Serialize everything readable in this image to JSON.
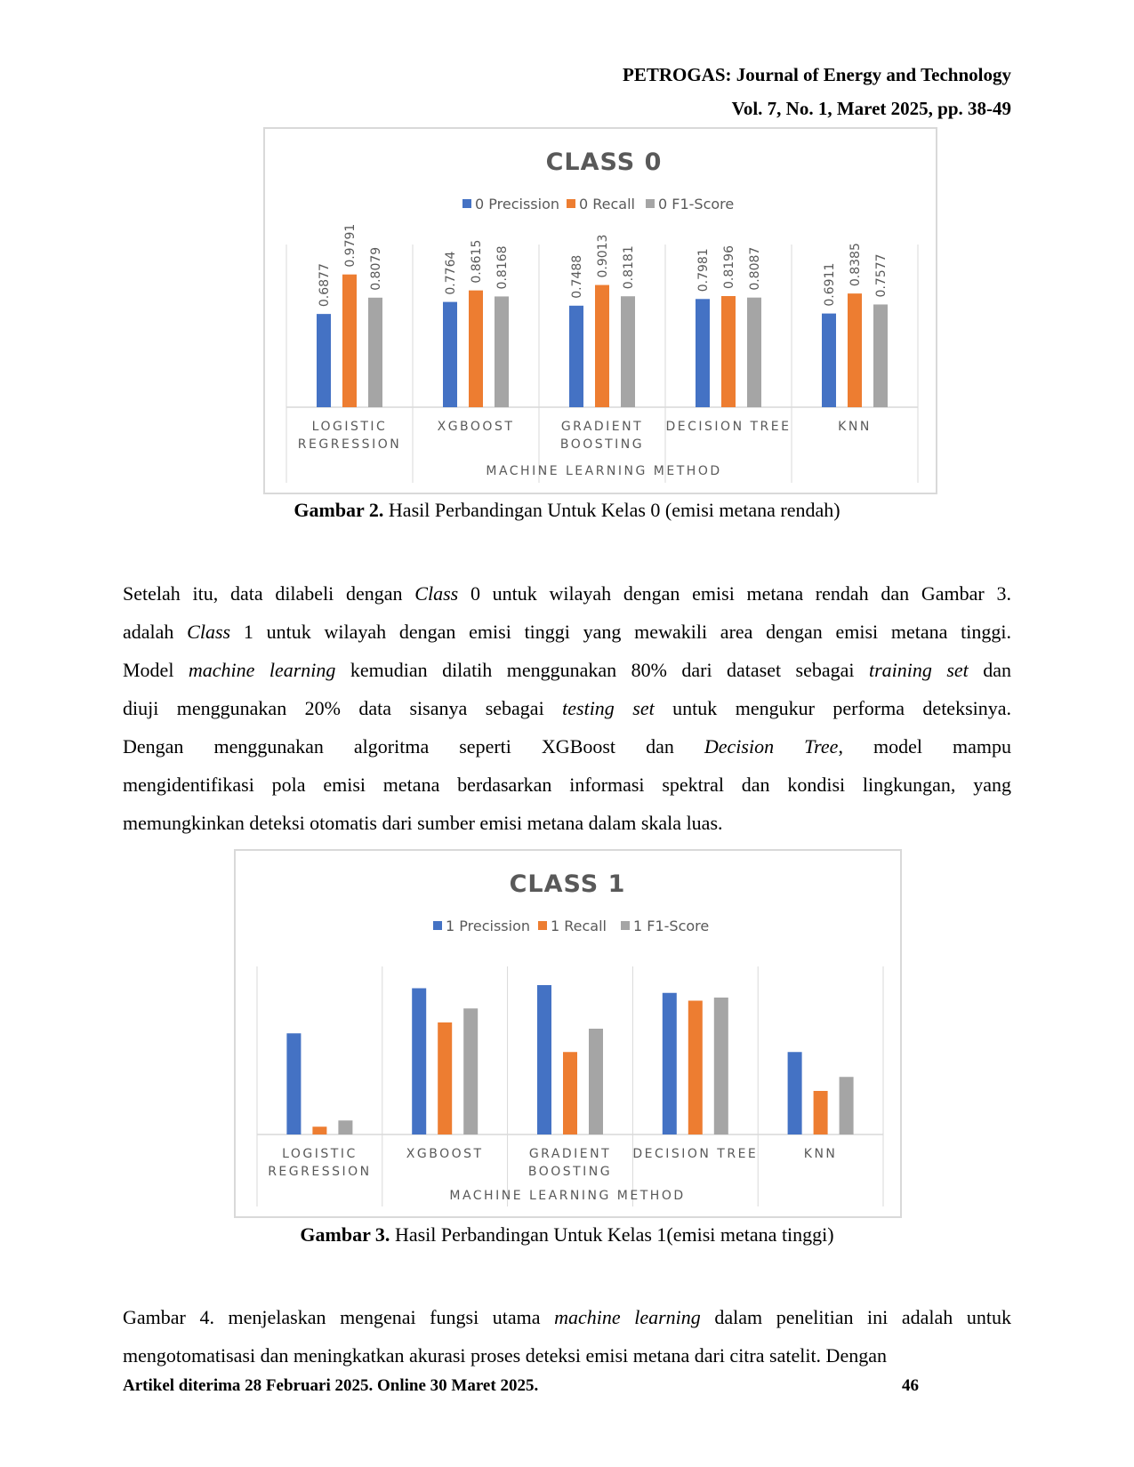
{
  "header": {
    "journal": "PETROGAS: Journal of Energy and Technology",
    "volume": "Vol. 7, No. 1, Maret 2025, pp. 38-49"
  },
  "figure2": {
    "caption_label": "Gambar 2.",
    "caption_text": " Hasil Perbandingan Untuk Kelas 0 (emisi metana rendah)"
  },
  "paragraph1": {
    "lines": [
      [
        {
          "t": "Setelah itu, data dilabeli dengan "
        },
        {
          "t": "Class",
          "i": true
        },
        {
          "t": " 0 untuk wilayah dengan emisi metana rendah dan Gambar 3."
        }
      ],
      [
        {
          "t": "adalah "
        },
        {
          "t": "Class",
          "i": true
        },
        {
          "t": " 1 untuk wilayah dengan emisi tinggi yang mewakili area dengan emisi metana tinggi."
        }
      ],
      [
        {
          "t": "Model "
        },
        {
          "t": "machine learning",
          "i": true
        },
        {
          "t": " kemudian dilatih menggunakan 80% dari dataset sebagai "
        },
        {
          "t": "training set",
          "i": true
        },
        {
          "t": " dan"
        }
      ],
      [
        {
          "t": "diuji menggunakan 20% data sisanya sebagai "
        },
        {
          "t": "testing set",
          "i": true
        },
        {
          "t": " untuk mengukur performa deteksinya."
        }
      ],
      [
        {
          "t": "Dengan menggunakan algoritma seperti XGBoost dan "
        },
        {
          "t": "Decision Tree",
          "i": true
        },
        {
          "t": ", model mampu"
        }
      ],
      [
        {
          "t": "mengidentifikasi pola emisi metana berdasarkan informasi spektral dan kondisi lingkungan, yang"
        }
      ],
      [
        {
          "t": "memungkinkan deteksi otomatis dari sumber emisi metana dalam skala luas."
        }
      ]
    ]
  },
  "figure3": {
    "caption_label": "Gambar 3.",
    "caption_text": " Hasil Perbandingan Untuk Kelas 1(emisi metana tinggi)"
  },
  "paragraph2": {
    "lines": [
      [
        {
          "t": "Gambar 4. menjelaskan mengenai fungsi utama "
        },
        {
          "t": "machine learning",
          "i": true
        },
        {
          "t": " dalam penelitian ini adalah untuk"
        }
      ],
      [
        {
          "t": "mengotomatisasi dan meningkatkan akurasi proses deteksi emisi metana dari citra satelit. Dengan"
        }
      ]
    ]
  },
  "footer": {
    "text": "Artikel diterima 28 Februari 2025. Online 30 Maret 2025.",
    "page_number": "46"
  },
  "colors": {
    "precision": "#4472C4",
    "recall": "#ED7D31",
    "f1": "#A5A5A5",
    "text": "#595959",
    "grid": "#D9D9D9"
  },
  "chart_data": [
    {
      "type": "bar",
      "title": "CLASS 0",
      "xlabel": "MACHINE LEARNING METHOD",
      "ylabel": "",
      "categories": [
        [
          "LOGISTIC",
          "REGRESSION"
        ],
        [
          "XGBOOST"
        ],
        [
          "GRADIENT",
          "BOOSTING"
        ],
        [
          "DECISION TREE"
        ],
        [
          "KNN"
        ]
      ],
      "series": [
        {
          "name": "0 Precission",
          "values": [
            0.6877,
            0.7764,
            0.7488,
            0.7981,
            0.6911
          ]
        },
        {
          "name": "0 Recall",
          "values": [
            0.9791,
            0.8615,
            0.9013,
            0.8196,
            0.8385
          ]
        },
        {
          "name": "0 F1-Score",
          "values": [
            0.8079,
            0.8168,
            0.8181,
            0.8087,
            0.7577
          ]
        }
      ],
      "data_labels": true,
      "ylim": [
        0,
        1.2
      ],
      "legend": "top"
    },
    {
      "type": "bar",
      "title": "CLASS 1",
      "xlabel": "MACHINE LEARNING METHOD",
      "ylabel": "",
      "categories": [
        [
          "LOGISTIC",
          "REGRESSION"
        ],
        [
          "XGBOOST"
        ],
        [
          "GRADIENT",
          "BOOSTING"
        ],
        [
          "DECISION TREE"
        ],
        [
          "KNN"
        ]
      ],
      "series": [
        {
          "name": "1 Precission",
          "values": [
            0.65,
            0.94,
            0.96,
            0.91,
            0.53
          ]
        },
        {
          "name": "1 Recall",
          "values": [
            0.05,
            0.72,
            0.53,
            0.86,
            0.28
          ]
        },
        {
          "name": "1 F1-Score",
          "values": [
            0.09,
            0.81,
            0.68,
            0.88,
            0.37
          ]
        }
      ],
      "data_labels": false,
      "ylim": [
        0,
        1.08
      ],
      "legend": "top"
    }
  ]
}
